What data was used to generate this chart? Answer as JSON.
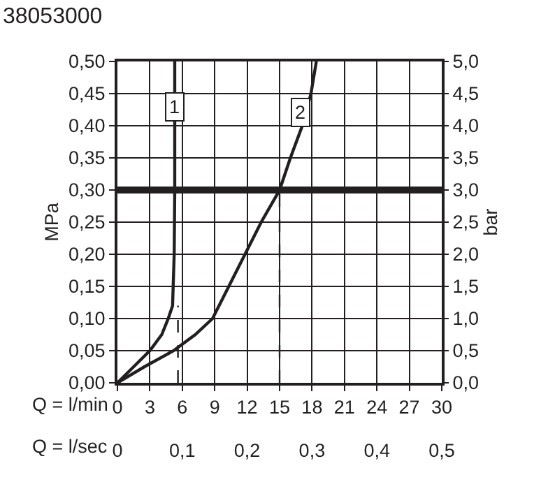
{
  "chart_data": {
    "type": "line",
    "title": "38053000",
    "xlabel": "Q = l/min",
    "x2label": "Q = l/sec",
    "ylabel": "MPa",
    "y2label": "bar",
    "xlim": [
      0,
      30
    ],
    "xticks": [
      0,
      3,
      6,
      9,
      12,
      15,
      18,
      21,
      24,
      27,
      30
    ],
    "x2lim": [
      0,
      0.5
    ],
    "x2ticks": [
      0,
      {
        "value": 0.1,
        "label": "0,1"
      },
      {
        "value": 0.2,
        "label": "0,2"
      },
      {
        "value": 0.3,
        "label": "0,3"
      },
      {
        "value": 0.4,
        "label": "0,4"
      },
      {
        "value": 0.5,
        "label": "0,5"
      }
    ],
    "ylim": [
      0,
      0.5
    ],
    "yticks": [
      {
        "value": 0,
        "label": "0,00"
      },
      {
        "value": 0.05,
        "label": "0,05"
      },
      {
        "value": 0.1,
        "label": "0,10"
      },
      {
        "value": 0.15,
        "label": "0,15"
      },
      {
        "value": 0.2,
        "label": "0,20"
      },
      {
        "value": 0.25,
        "label": "0,25"
      },
      {
        "value": 0.3,
        "label": "0,30"
      },
      {
        "value": 0.35,
        "label": "0,35"
      },
      {
        "value": 0.4,
        "label": "0,40"
      },
      {
        "value": 0.45,
        "label": "0,45"
      },
      {
        "value": 0.5,
        "label": "0,50"
      }
    ],
    "y2lim": [
      0,
      5
    ],
    "y2ticks": [
      {
        "value": 0,
        "label": "0,0"
      },
      {
        "value": 0.5,
        "label": "0,5"
      },
      {
        "value": 1,
        "label": "1,0"
      },
      {
        "value": 1.5,
        "label": "1,5"
      },
      {
        "value": 2,
        "label": "2,0"
      },
      {
        "value": 2.5,
        "label": "2,5"
      },
      {
        "value": 3,
        "label": "3,0"
      },
      {
        "value": 3.5,
        "label": "3,5"
      },
      {
        "value": 4,
        "label": "4,0"
      },
      {
        "value": 4.5,
        "label": "4,5"
      },
      {
        "value": 5,
        "label": "5,0"
      }
    ],
    "grid": true,
    "marker": "none",
    "series": [
      {
        "color": "#231f20",
        "x": [
          0,
          1.5,
          3,
          4.1,
          4.7,
          5.1,
          5.25,
          5.3,
          5.3
        ],
        "values": [
          0,
          0.025,
          0.05,
          0.075,
          0.1,
          0.12,
          0.2,
          0.3,
          0.5
        ]
      },
      {
        "color": "#231f20",
        "x": [
          0,
          2.5,
          5.2,
          7.2,
          8.8,
          10.3,
          11.8,
          13.3,
          15,
          16,
          17.1,
          17.9,
          18.4
        ],
        "values": [
          0,
          0.025,
          0.05,
          0.075,
          0.1,
          0.15,
          0.2,
          0.25,
          0.3,
          0.35,
          0.4,
          0.45,
          0.5
        ]
      },
      {
        "color": "#231f20",
        "line_style": "dashed",
        "x": [
          5.6,
          5.6
        ],
        "values": [
          0,
          0.12
        ]
      },
      {
        "color": "#231f20",
        "line_style": "dashed",
        "x": [
          15,
          15
        ],
        "values": [
          0,
          0.3
        ]
      }
    ],
    "ref_lines": [
      {
        "axis": "y",
        "value": 0.3,
        "color": "#231f20"
      }
    ],
    "annotations": [
      {
        "text": "1",
        "x": 5.3,
        "y": 0.43
      },
      {
        "text": "2",
        "x": 16.9,
        "y": 0.42
      }
    ]
  }
}
